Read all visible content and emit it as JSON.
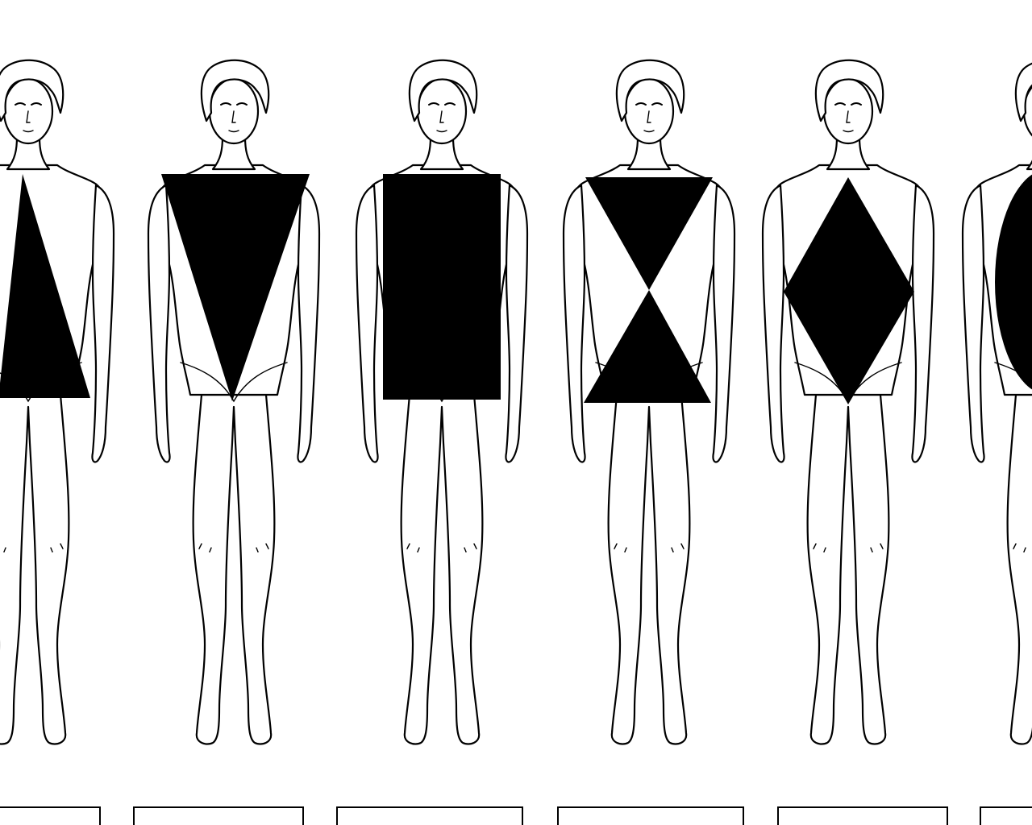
{
  "figure": {
    "ink_color": "#000000",
    "paper_color": "#ffffff"
  },
  "figures": [
    {
      "shape": "triangle",
      "icon": "triangle-icon",
      "label": ""
    },
    {
      "shape": "inverted-triangle",
      "icon": "inverted-triangle-icon",
      "label": ""
    },
    {
      "shape": "rectangle",
      "icon": "rectangle-icon",
      "label": ""
    },
    {
      "shape": "hourglass",
      "icon": "hourglass-icon",
      "label": ""
    },
    {
      "shape": "diamond",
      "icon": "diamond-icon",
      "label": ""
    },
    {
      "shape": "oval",
      "icon": "oval-icon",
      "label": ""
    }
  ]
}
